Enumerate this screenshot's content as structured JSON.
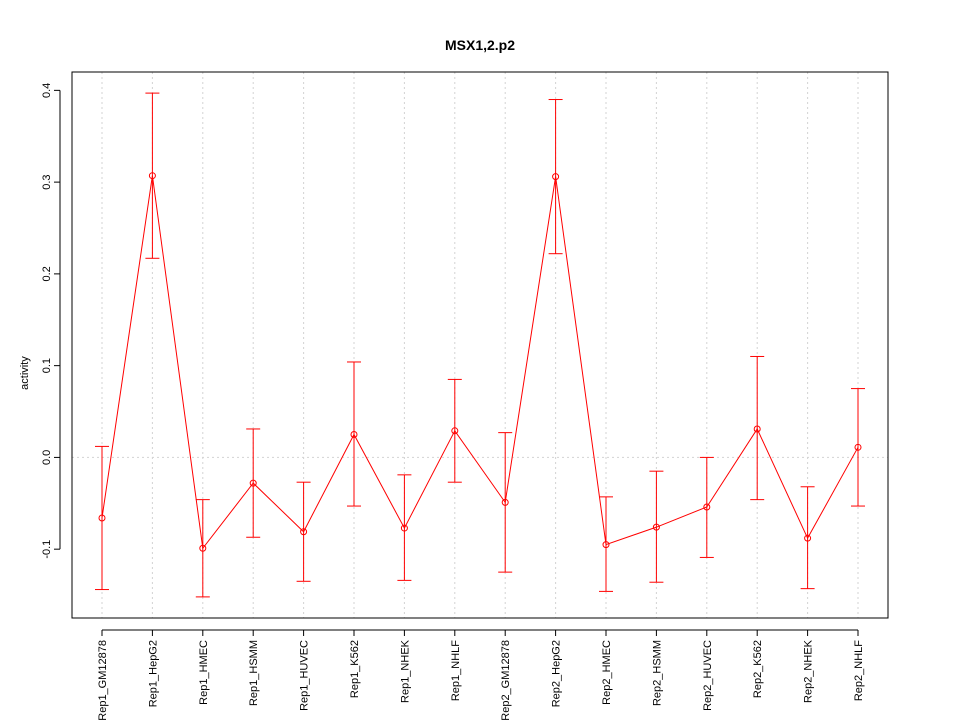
{
  "chart_data": {
    "type": "line",
    "title": "MSX1,2.p2",
    "xlabel": "",
    "ylabel": "activity",
    "ylim": [
      -0.175,
      0.42
    ],
    "yticks": [
      "-0.1",
      "0.0",
      "0.1",
      "0.2",
      "0.3",
      "0.4"
    ],
    "ytick_values": [
      -0.1,
      0.0,
      0.1,
      0.2,
      0.3,
      0.4
    ],
    "grid": true,
    "categories": [
      "Rep1_GM12878",
      "Rep1_HepG2",
      "Rep1_HMEC",
      "Rep1_HSMM",
      "Rep1_HUVEC",
      "Rep1_K562",
      "Rep1_NHEK",
      "Rep1_NHLF",
      "Rep2_GM12878",
      "Rep2_HepG2",
      "Rep2_HMEC",
      "Rep2_HSMM",
      "Rep2_HUVEC",
      "Rep2_K562",
      "Rep2_NHEK",
      "Rep2_NHLF"
    ],
    "series": [
      {
        "values": [
          -0.066,
          0.307,
          -0.099,
          -0.028,
          -0.081,
          0.025,
          -0.077,
          0.029,
          -0.049,
          0.306,
          -0.095,
          -0.076,
          -0.054,
          0.031,
          -0.088,
          0.011
        ],
        "lower": [
          -0.144,
          0.217,
          -0.152,
          -0.087,
          -0.135,
          -0.053,
          -0.134,
          -0.027,
          -0.125,
          0.222,
          -0.146,
          -0.136,
          -0.109,
          -0.046,
          -0.143,
          -0.053
        ],
        "upper": [
          0.012,
          0.397,
          -0.046,
          0.031,
          -0.027,
          0.104,
          -0.019,
          0.085,
          0.027,
          0.39,
          -0.043,
          -0.015,
          0.0,
          0.11,
          -0.032,
          0.075
        ]
      }
    ],
    "colors": {
      "series": "#ff0000",
      "grid": "#d3d3d3",
      "axis": "#000000"
    }
  }
}
